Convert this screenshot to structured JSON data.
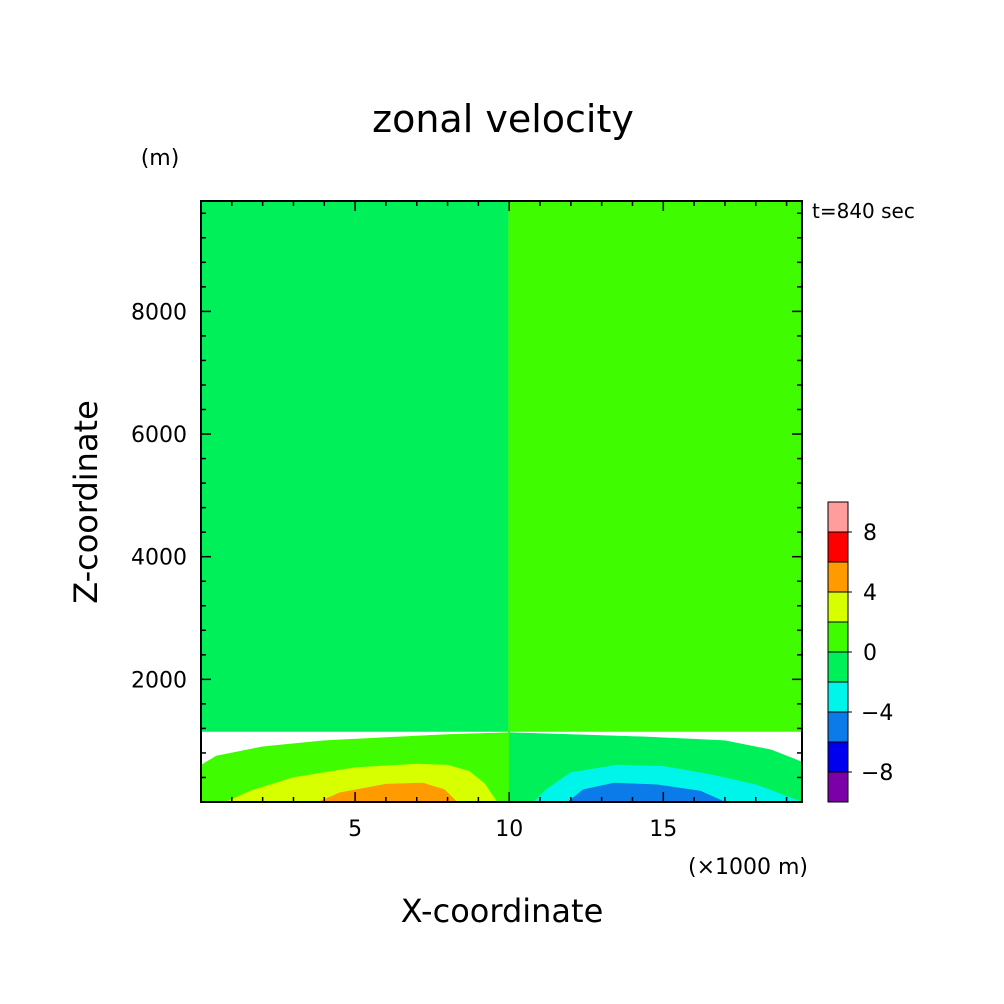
{
  "chart_data": {
    "type": "contour",
    "title": "zonal velocity",
    "time_label": "t=840 sec",
    "xlabel": "X-coordinate",
    "x_unit": "(×1000 m)",
    "ylabel": "Z-coordinate",
    "y_unit": "(m)",
    "xlim": [
      0,
      19.5
    ],
    "ylim": [
      0,
      9800
    ],
    "x_ticks": [
      5,
      10,
      15
    ],
    "y_ticks": [
      2000,
      4000,
      6000,
      8000
    ],
    "grid": false,
    "levels": [
      -10,
      -8,
      -6,
      -4,
      -2,
      0,
      2,
      4,
      6,
      8,
      10
    ],
    "level_colors": [
      "#7b00a8",
      "#0000ee",
      "#0b7bea",
      "#00f5ea",
      "#00f05a",
      "#3ffc00",
      "#d8ff00",
      "#ff9a00",
      "#ff0000",
      "#ff9c9c"
    ],
    "colorbar_ticks": [
      -8,
      -4,
      0,
      4,
      8
    ],
    "colorbar_placement": "right",
    "regions": [
      {
        "range": [
          -2,
          0
        ],
        "polygon": [
          [
            0,
            9800
          ],
          [
            10,
            9800
          ],
          [
            10,
            1150
          ],
          [
            0,
            1150
          ]
        ]
      },
      {
        "range": [
          0,
          2
        ],
        "polygon": [
          [
            10,
            9800
          ],
          [
            19.5,
            9800
          ],
          [
            19.5,
            1150
          ],
          [
            10,
            1150
          ]
        ]
      },
      {
        "range": [
          0,
          2
        ],
        "polygon": [
          [
            0,
            600
          ],
          [
            0.5,
            750
          ],
          [
            2,
            900
          ],
          [
            4,
            1000
          ],
          [
            6,
            1050
          ],
          [
            8,
            1100
          ],
          [
            10,
            1130
          ],
          [
            10,
            0
          ],
          [
            0,
            0
          ]
        ]
      },
      {
        "range": [
          -2,
          0
        ],
        "polygon": [
          [
            10,
            1130
          ],
          [
            12,
            1100
          ],
          [
            14.5,
            1060
          ],
          [
            17,
            1000
          ],
          [
            18.5,
            850
          ],
          [
            19.5,
            650
          ],
          [
            19.5,
            0
          ],
          [
            10,
            0
          ]
        ]
      },
      {
        "range": [
          2,
          4
        ],
        "polygon": [
          [
            0.8,
            0
          ],
          [
            1.6,
            180
          ],
          [
            3,
            400
          ],
          [
            5,
            560
          ],
          [
            7,
            620
          ],
          [
            8,
            600
          ],
          [
            8.7,
            500
          ],
          [
            9.2,
            300
          ],
          [
            9.6,
            0
          ]
        ]
      },
      {
        "range": [
          4,
          6
        ],
        "polygon": [
          [
            3.8,
            0
          ],
          [
            4.5,
            150
          ],
          [
            6,
            290
          ],
          [
            7.2,
            310
          ],
          [
            7.9,
            200
          ],
          [
            8.3,
            0
          ]
        ]
      },
      {
        "range": [
          -4,
          -2
        ],
        "polygon": [
          [
            10.8,
            0
          ],
          [
            11.2,
            200
          ],
          [
            12,
            480
          ],
          [
            13.5,
            600
          ],
          [
            15,
            580
          ],
          [
            16.5,
            450
          ],
          [
            18,
            280
          ],
          [
            19.5,
            0
          ]
        ]
      },
      {
        "range": [
          -6,
          -4
        ],
        "polygon": [
          [
            11.9,
            0
          ],
          [
            12.4,
            200
          ],
          [
            13.4,
            310
          ],
          [
            14.8,
            280
          ],
          [
            16.2,
            180
          ],
          [
            17,
            0
          ]
        ]
      }
    ]
  }
}
